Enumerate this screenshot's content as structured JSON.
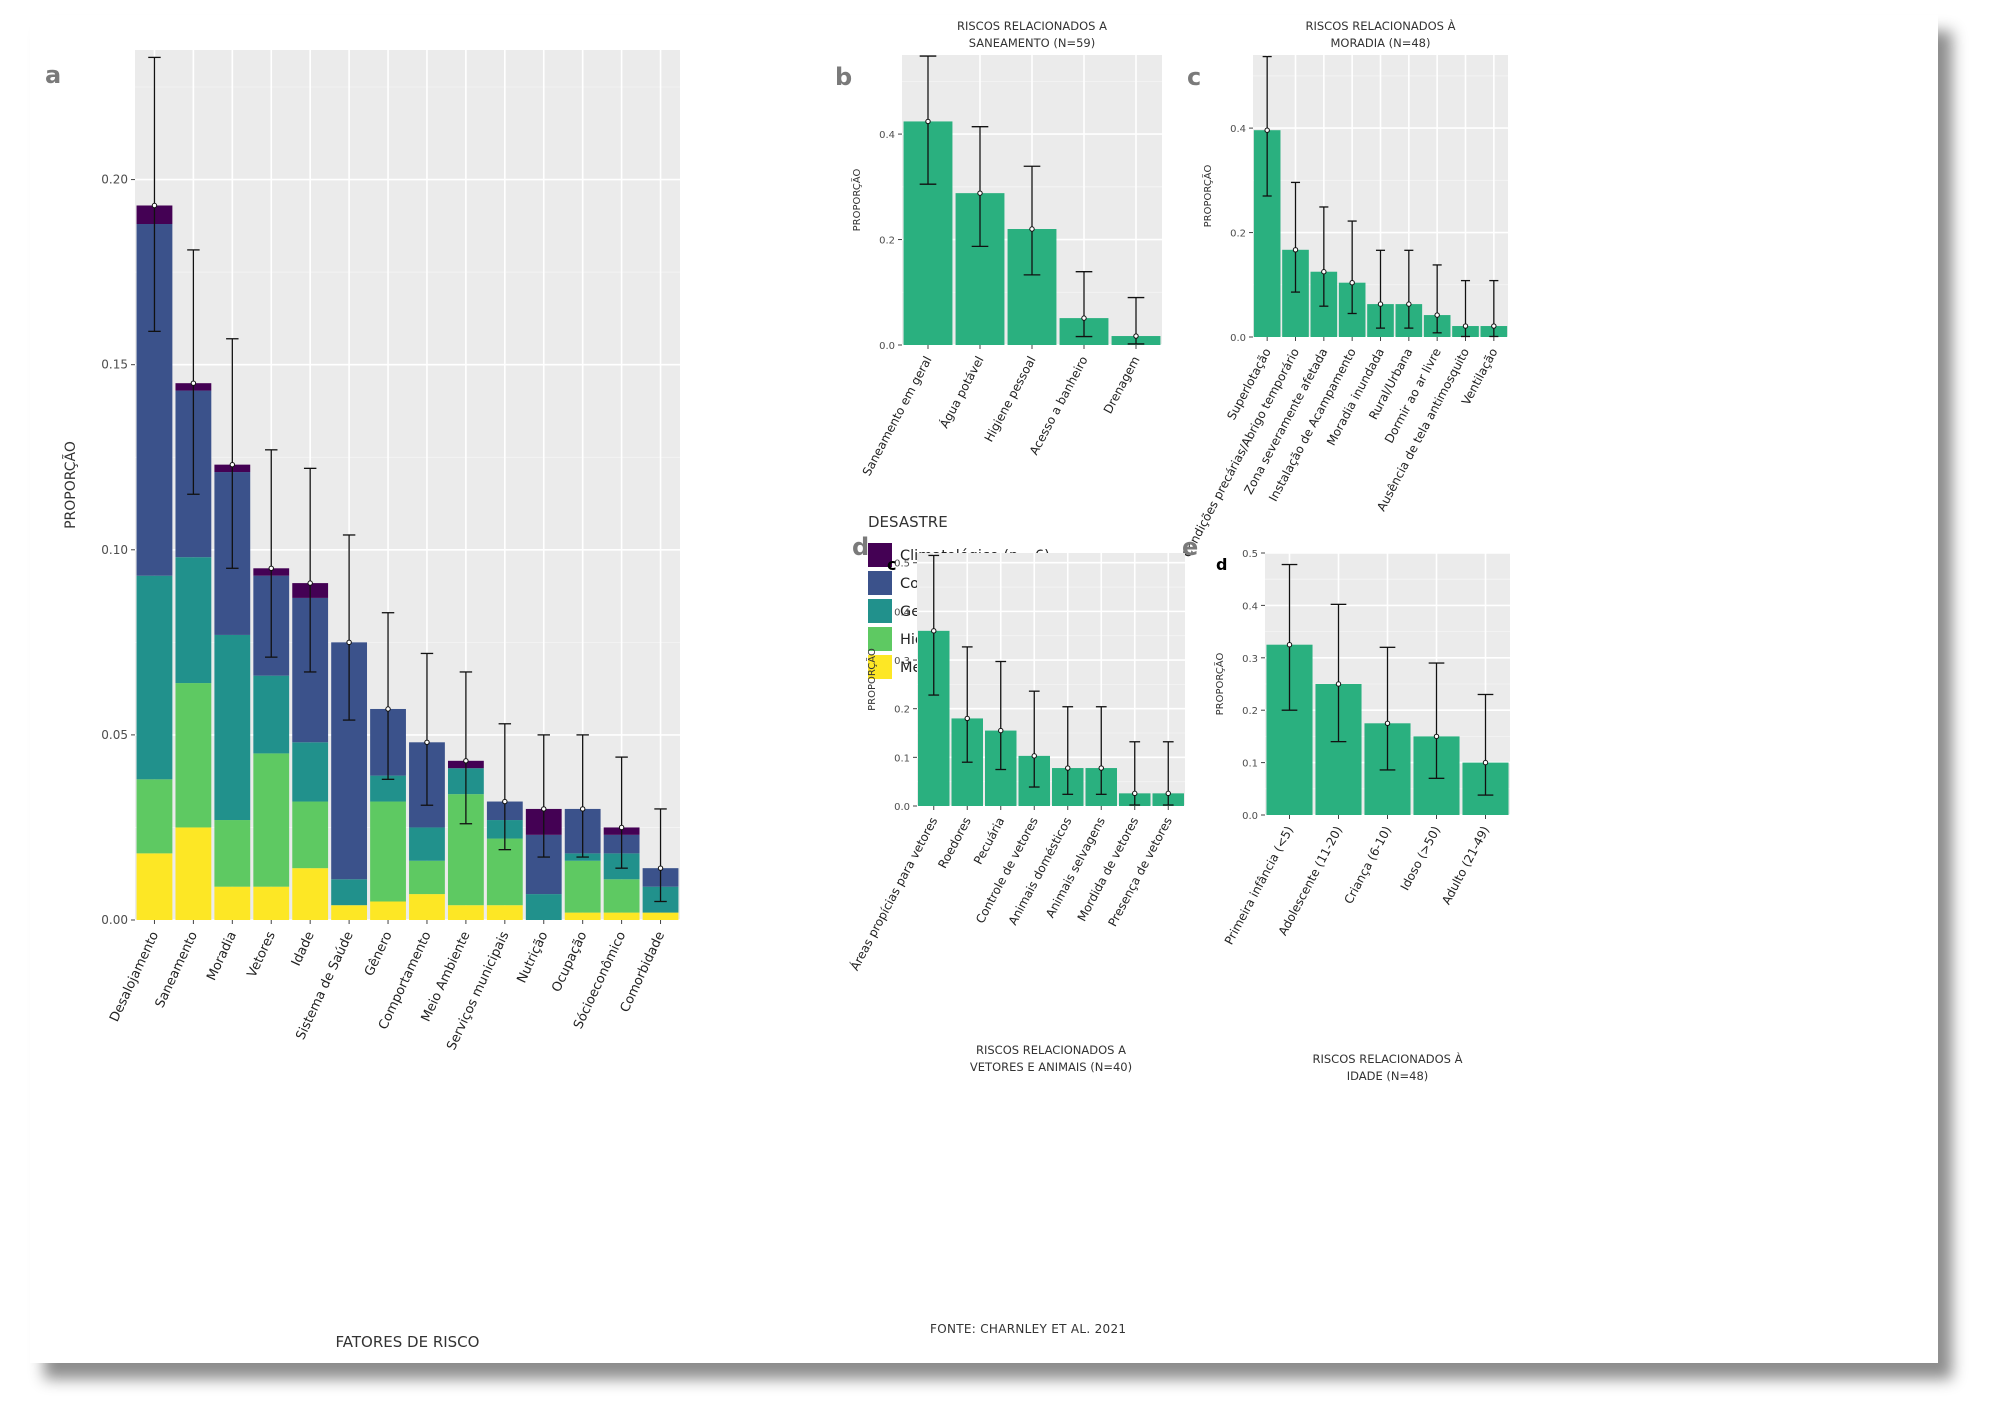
{
  "source_note": "FONTE: CHARNLEY ET AL. 2021",
  "chart_data": [
    {
      "panel": "a",
      "type": "bar",
      "stacked": true,
      "title": "",
      "xlabel": "FATORES DE RISCO",
      "ylabel": "PROPORÇÃO",
      "ylim": [
        0,
        0.235
      ],
      "yticks": [
        "0.00",
        "0.05",
        "0.10",
        "0.15",
        "0.20"
      ],
      "grid": true,
      "legend_title": "DESASTRE",
      "legend_position": "right",
      "categories": [
        "Desalojamento",
        "Saneamento",
        "Moradia",
        "Vetores",
        "Idade",
        "Sistema de Saúde",
        "Gênero",
        "Comportamento",
        "Meio Ambiente",
        "Serviços municipais",
        "Nutrição",
        "Ocupação",
        "Sócioeconômico",
        "Comorbidade"
      ],
      "series": [
        {
          "name": "Meteorológico (n = 15)",
          "color": "#FDE725",
          "values": [
            0.018,
            0.025,
            0.009,
            0.009,
            0.014,
            0.004,
            0.005,
            0.007,
            0.004,
            0.004,
            0.0,
            0.002,
            0.002,
            0.002
          ]
        },
        {
          "name": "Hidrológico (n = 43)",
          "color": "#5EC962",
          "values": [
            0.02,
            0.039,
            0.018,
            0.036,
            0.018,
            0.0,
            0.027,
            0.009,
            0.03,
            0.018,
            0.0,
            0.014,
            0.009,
            0.0
          ]
        },
        {
          "name": "Geofísico (n = 28)",
          "color": "#21918C",
          "values": [
            0.055,
            0.034,
            0.05,
            0.021,
            0.016,
            0.007,
            0.007,
            0.009,
            0.007,
            0.005,
            0.007,
            0.002,
            0.007,
            0.007
          ]
        },
        {
          "name": "Conflitos (n = 45)",
          "color": "#3B528B",
          "values": [
            0.095,
            0.045,
            0.044,
            0.027,
            0.039,
            0.064,
            0.018,
            0.023,
            0.0,
            0.005,
            0.016,
            0.012,
            0.005,
            0.005
          ]
        },
        {
          "name": "Climatológico (n =6)",
          "color": "#440154",
          "values": [
            0.005,
            0.002,
            0.002,
            0.002,
            0.004,
            0.0,
            0.0,
            0.0,
            0.002,
            0.0,
            0.007,
            0.0,
            0.002,
            0.0
          ]
        }
      ],
      "error_bars": [
        [
          0.159,
          0.233
        ],
        [
          0.115,
          0.181
        ],
        [
          0.095,
          0.157
        ],
        [
          0.071,
          0.127
        ],
        [
          0.067,
          0.122
        ],
        [
          0.054,
          0.104
        ],
        [
          0.038,
          0.083
        ],
        [
          0.031,
          0.072
        ],
        [
          0.026,
          0.067
        ],
        [
          0.019,
          0.053
        ],
        [
          0.017,
          0.05
        ],
        [
          0.017,
          0.05
        ],
        [
          0.014,
          0.044
        ],
        [
          0.005,
          0.03
        ]
      ]
    },
    {
      "panel": "b",
      "type": "bar",
      "title": "RISCOS RELACIONADOS A SANEAMENTO (N=59)",
      "title_lines": [
        "RISCOS RELACIONADOS A",
        "SANEAMENTO (N=59)"
      ],
      "ylabel": "PROPORÇÃO",
      "ylim": [
        0,
        0.55
      ],
      "yticks": [
        "0.0",
        "0.2",
        "0.4"
      ],
      "color": "#2AB07F",
      "categories": [
        "Saneamento em geral",
        "Água potável",
        "Higiene pessoal",
        "Acesso a banheiro",
        "Drenagem"
      ],
      "values": [
        0.424,
        0.288,
        0.22,
        0.051,
        0.017
      ],
      "error_bars": [
        [
          0.305,
          0.548
        ],
        [
          0.187,
          0.414
        ],
        [
          0.133,
          0.339
        ],
        [
          0.016,
          0.139
        ],
        [
          0.002,
          0.09
        ]
      ]
    },
    {
      "panel": "c",
      "type": "bar",
      "title": "RISCOS RELACIONADOS À MORADIA (N=48)",
      "title_lines": [
        "RISCOS RELACIONADOS À",
        "MORADIA (N=48)"
      ],
      "ylabel": "PROPORÇÃO",
      "ylim": [
        0,
        0.54
      ],
      "yticks": [
        "0.0",
        "0.2",
        "0.4"
      ],
      "color": "#2AB07F",
      "categories": [
        "Superlotação",
        "Condições precárias/Abrigo temporário",
        "Zona severamente afetada",
        "Instalação de Acampamento",
        "Moradia inundada",
        "Rural/Urbana",
        "Dormir ao ar livre",
        "Ausência de tela antimosquito",
        "Ventilação"
      ],
      "values": [
        0.396,
        0.167,
        0.125,
        0.104,
        0.063,
        0.063,
        0.042,
        0.021,
        0.021
      ],
      "error_bars": [
        [
          0.27,
          0.537
        ],
        [
          0.086,
          0.296
        ],
        [
          0.059,
          0.249
        ],
        [
          0.045,
          0.222
        ],
        [
          0.017,
          0.166
        ],
        [
          0.017,
          0.166
        ],
        [
          0.008,
          0.138
        ],
        [
          0.001,
          0.108
        ],
        [
          0.001,
          0.108
        ]
      ]
    },
    {
      "panel": "d",
      "inner_label": "c",
      "type": "bar",
      "title": "RISCOS RELACIONADOS A VETORES E ANIMAIS (N=40)",
      "title_lines": [
        "RISCOS RELACIONADOS A",
        "VETORES E ANIMAIS (N=40)"
      ],
      "ylabel": "PROPORÇÃO",
      "ylim": [
        0,
        0.52
      ],
      "yticks": [
        "0.0",
        "0.1",
        "0.2",
        "0.3",
        "0.4",
        "0.5"
      ],
      "color": "#2AB07F",
      "categories": [
        "Áreas propícias para vetores",
        "Roedores",
        "Pecuária",
        "Controle de vetores",
        "Animais domésticos",
        "Animais selvagens",
        "Mordida de vetores",
        "Presença de vetores"
      ],
      "values": [
        0.36,
        0.18,
        0.155,
        0.103,
        0.078,
        0.078,
        0.026,
        0.026
      ],
      "error_bars": [
        [
          0.228,
          0.515
        ],
        [
          0.09,
          0.327
        ],
        [
          0.075,
          0.297
        ],
        [
          0.039,
          0.236
        ],
        [
          0.024,
          0.204
        ],
        [
          0.024,
          0.204
        ],
        [
          0.002,
          0.132
        ],
        [
          0.002,
          0.132
        ]
      ]
    },
    {
      "panel": "e",
      "inner_label": "d",
      "type": "bar",
      "title": "RISCOS RELACIONADOS À IDADE (N=48)",
      "title_lines": [
        "RISCOS RELACIONADOS À",
        "IDADE (N=48)"
      ],
      "ylabel": "PROPORÇÃO",
      "ylim": [
        0,
        0.5
      ],
      "yticks": [
        "0.0",
        "0.1",
        "0.2",
        "0.3",
        "0.4",
        "0.5"
      ],
      "color": "#2AB07F",
      "categories": [
        "Primeira infância (<5)",
        "Adolescente (11-20)",
        "Criança (6-10)",
        "Idoso (>50)",
        "Adulto (21-49)"
      ],
      "values": [
        0.325,
        0.25,
        0.175,
        0.15,
        0.1
      ],
      "error_bars": [
        [
          0.2,
          0.478
        ],
        [
          0.14,
          0.402
        ],
        [
          0.086,
          0.32
        ],
        [
          0.07,
          0.29
        ],
        [
          0.038,
          0.23
        ]
      ]
    }
  ]
}
